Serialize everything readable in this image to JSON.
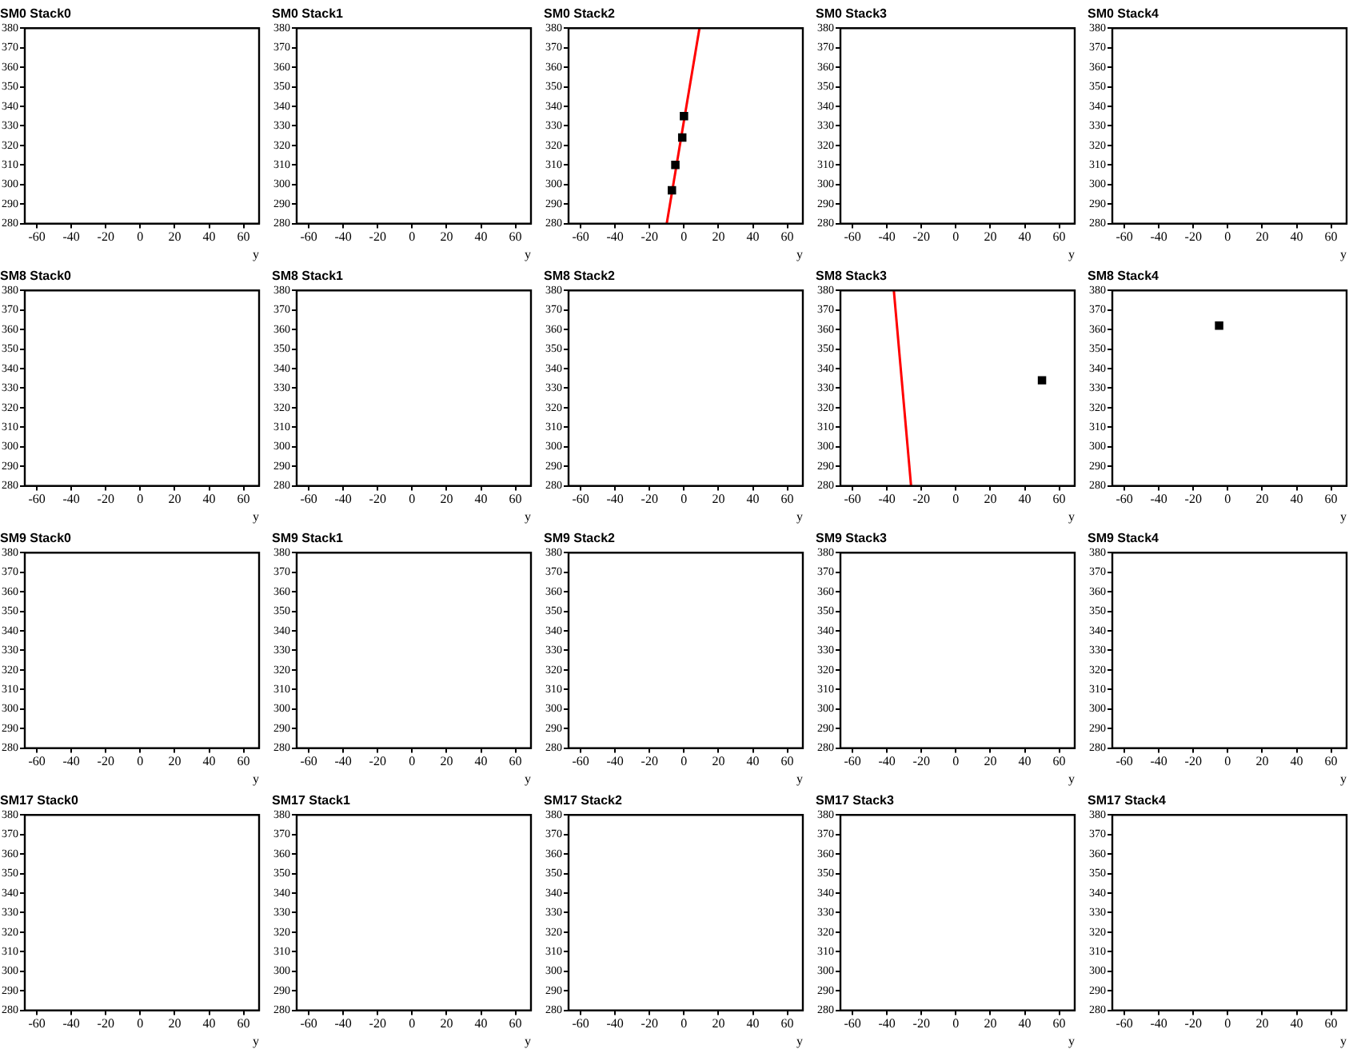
{
  "chart_data": [
    {
      "type": "scatter",
      "title": "SM0 Stack0",
      "xlabel": "y",
      "xlim": [
        -67,
        69
      ],
      "xticks": [
        -60,
        -40,
        -20,
        0,
        20,
        40,
        60
      ],
      "ylim": [
        280,
        380
      ],
      "yticks": [
        280,
        290,
        300,
        310,
        320,
        330,
        340,
        350,
        360,
        370,
        380
      ]
    },
    {
      "type": "scatter",
      "title": "SM0 Stack1",
      "xlabel": "y",
      "xlim": [
        -67,
        69
      ],
      "xticks": [
        -60,
        -40,
        -20,
        0,
        20,
        40,
        60
      ],
      "ylim": [
        280,
        380
      ],
      "yticks": [
        280,
        290,
        300,
        310,
        320,
        330,
        340,
        350,
        360,
        370,
        380
      ]
    },
    {
      "type": "scatter",
      "title": "SM0 Stack2",
      "xlabel": "y",
      "xlim": [
        -67,
        69
      ],
      "xticks": [
        -60,
        -40,
        -20,
        0,
        20,
        40,
        60
      ],
      "ylim": [
        280,
        380
      ],
      "yticks": [
        280,
        290,
        300,
        310,
        320,
        330,
        340,
        350,
        360,
        370,
        380
      ],
      "series": [
        {
          "color": "#000000",
          "marker": "square",
          "x": [
            -7,
            -5,
            -1,
            0
          ],
          "values": [
            297,
            310,
            324,
            335
          ]
        },
        {
          "type": "line",
          "color": "#ff0000",
          "marker": "none",
          "x": [
            -10,
            9
          ],
          "values": [
            280,
            380
          ]
        }
      ]
    },
    {
      "type": "scatter",
      "title": "SM0 Stack3",
      "xlabel": "y",
      "xlim": [
        -67,
        69
      ],
      "xticks": [
        -60,
        -40,
        -20,
        0,
        20,
        40,
        60
      ],
      "ylim": [
        280,
        380
      ],
      "yticks": [
        280,
        290,
        300,
        310,
        320,
        330,
        340,
        350,
        360,
        370,
        380
      ]
    },
    {
      "type": "scatter",
      "title": "SM0 Stack4",
      "xlabel": "y",
      "xlim": [
        -67,
        69
      ],
      "xticks": [
        -60,
        -40,
        -20,
        0,
        20,
        40,
        60
      ],
      "ylim": [
        280,
        380
      ],
      "yticks": [
        280,
        290,
        300,
        310,
        320,
        330,
        340,
        350,
        360,
        370,
        380
      ]
    },
    {
      "type": "scatter",
      "title": "SM8 Stack0",
      "xlabel": "y",
      "xlim": [
        -67,
        69
      ],
      "xticks": [
        -60,
        -40,
        -20,
        0,
        20,
        40,
        60
      ],
      "ylim": [
        280,
        380
      ],
      "yticks": [
        280,
        290,
        300,
        310,
        320,
        330,
        340,
        350,
        360,
        370,
        380
      ]
    },
    {
      "type": "scatter",
      "title": "SM8 Stack1",
      "xlabel": "y",
      "xlim": [
        -67,
        69
      ],
      "xticks": [
        -60,
        -40,
        -20,
        0,
        20,
        40,
        60
      ],
      "ylim": [
        280,
        380
      ],
      "yticks": [
        280,
        290,
        300,
        310,
        320,
        330,
        340,
        350,
        360,
        370,
        380
      ]
    },
    {
      "type": "scatter",
      "title": "SM8 Stack2",
      "xlabel": "y",
      "xlim": [
        -67,
        69
      ],
      "xticks": [
        -60,
        -40,
        -20,
        0,
        20,
        40,
        60
      ],
      "ylim": [
        280,
        380
      ],
      "yticks": [
        280,
        290,
        300,
        310,
        320,
        330,
        340,
        350,
        360,
        370,
        380
      ]
    },
    {
      "type": "scatter",
      "title": "SM8 Stack3",
      "xlabel": "y",
      "xlim": [
        -67,
        69
      ],
      "xticks": [
        -60,
        -40,
        -20,
        0,
        20,
        40,
        60
      ],
      "ylim": [
        280,
        380
      ],
      "yticks": [
        280,
        290,
        300,
        310,
        320,
        330,
        340,
        350,
        360,
        370,
        380
      ],
      "series": [
        {
          "color": "#000000",
          "marker": "square",
          "x": [
            50
          ],
          "values": [
            334
          ]
        },
        {
          "type": "line",
          "color": "#ff0000",
          "marker": "none",
          "x": [
            -26,
            -36
          ],
          "values": [
            280,
            380
          ]
        }
      ]
    },
    {
      "type": "scatter",
      "title": "SM8 Stack4",
      "xlabel": "y",
      "xlim": [
        -67,
        69
      ],
      "xticks": [
        -60,
        -40,
        -20,
        0,
        20,
        40,
        60
      ],
      "ylim": [
        280,
        380
      ],
      "yticks": [
        280,
        290,
        300,
        310,
        320,
        330,
        340,
        350,
        360,
        370,
        380
      ],
      "series": [
        {
          "color": "#000000",
          "marker": "square",
          "x": [
            -5
          ],
          "values": [
            362
          ]
        }
      ]
    },
    {
      "type": "scatter",
      "title": "SM9 Stack0",
      "xlabel": "y",
      "xlim": [
        -67,
        69
      ],
      "xticks": [
        -60,
        -40,
        -20,
        0,
        20,
        40,
        60
      ],
      "ylim": [
        280,
        380
      ],
      "yticks": [
        280,
        290,
        300,
        310,
        320,
        330,
        340,
        350,
        360,
        370,
        380
      ]
    },
    {
      "type": "scatter",
      "title": "SM9 Stack1",
      "xlabel": "y",
      "xlim": [
        -67,
        69
      ],
      "xticks": [
        -60,
        -40,
        -20,
        0,
        20,
        40,
        60
      ],
      "ylim": [
        280,
        380
      ],
      "yticks": [
        280,
        290,
        300,
        310,
        320,
        330,
        340,
        350,
        360,
        370,
        380
      ]
    },
    {
      "type": "scatter",
      "title": "SM9 Stack2",
      "xlabel": "y",
      "xlim": [
        -67,
        69
      ],
      "xticks": [
        -60,
        -40,
        -20,
        0,
        20,
        40,
        60
      ],
      "ylim": [
        280,
        380
      ],
      "yticks": [
        280,
        290,
        300,
        310,
        320,
        330,
        340,
        350,
        360,
        370,
        380
      ]
    },
    {
      "type": "scatter",
      "title": "SM9 Stack3",
      "xlabel": "y",
      "xlim": [
        -67,
        69
      ],
      "xticks": [
        -60,
        -40,
        -20,
        0,
        20,
        40,
        60
      ],
      "ylim": [
        280,
        380
      ],
      "yticks": [
        280,
        290,
        300,
        310,
        320,
        330,
        340,
        350,
        360,
        370,
        380
      ]
    },
    {
      "type": "scatter",
      "title": "SM9 Stack4",
      "xlabel": "y",
      "xlim": [
        -67,
        69
      ],
      "xticks": [
        -60,
        -40,
        -20,
        0,
        20,
        40,
        60
      ],
      "ylim": [
        280,
        380
      ],
      "yticks": [
        280,
        290,
        300,
        310,
        320,
        330,
        340,
        350,
        360,
        370,
        380
      ]
    },
    {
      "type": "scatter",
      "title": "SM17 Stack0",
      "xlabel": "y",
      "xlim": [
        -67,
        69
      ],
      "xticks": [
        -60,
        -40,
        -20,
        0,
        20,
        40,
        60
      ],
      "ylim": [
        280,
        380
      ],
      "yticks": [
        280,
        290,
        300,
        310,
        320,
        330,
        340,
        350,
        360,
        370,
        380
      ]
    },
    {
      "type": "scatter",
      "title": "SM17 Stack1",
      "xlabel": "y",
      "xlim": [
        -67,
        69
      ],
      "xticks": [
        -60,
        -40,
        -20,
        0,
        20,
        40,
        60
      ],
      "ylim": [
        280,
        380
      ],
      "yticks": [
        280,
        290,
        300,
        310,
        320,
        330,
        340,
        350,
        360,
        370,
        380
      ]
    },
    {
      "type": "scatter",
      "title": "SM17 Stack2",
      "xlabel": "y",
      "xlim": [
        -67,
        69
      ],
      "xticks": [
        -60,
        -40,
        -20,
        0,
        20,
        40,
        60
      ],
      "ylim": [
        280,
        380
      ],
      "yticks": [
        280,
        290,
        300,
        310,
        320,
        330,
        340,
        350,
        360,
        370,
        380
      ]
    },
    {
      "type": "scatter",
      "title": "SM17 Stack3",
      "xlabel": "y",
      "xlim": [
        -67,
        69
      ],
      "xticks": [
        -60,
        -40,
        -20,
        0,
        20,
        40,
        60
      ],
      "ylim": [
        280,
        380
      ],
      "yticks": [
        280,
        290,
        300,
        310,
        320,
        330,
        340,
        350,
        360,
        370,
        380
      ]
    },
    {
      "type": "scatter",
      "title": "SM17 Stack4",
      "xlabel": "y",
      "xlim": [
        -67,
        69
      ],
      "xticks": [
        -60,
        -40,
        -20,
        0,
        20,
        40,
        60
      ],
      "ylim": [
        280,
        380
      ],
      "yticks": [
        280,
        290,
        300,
        310,
        320,
        330,
        340,
        350,
        360,
        370,
        380
      ]
    }
  ]
}
